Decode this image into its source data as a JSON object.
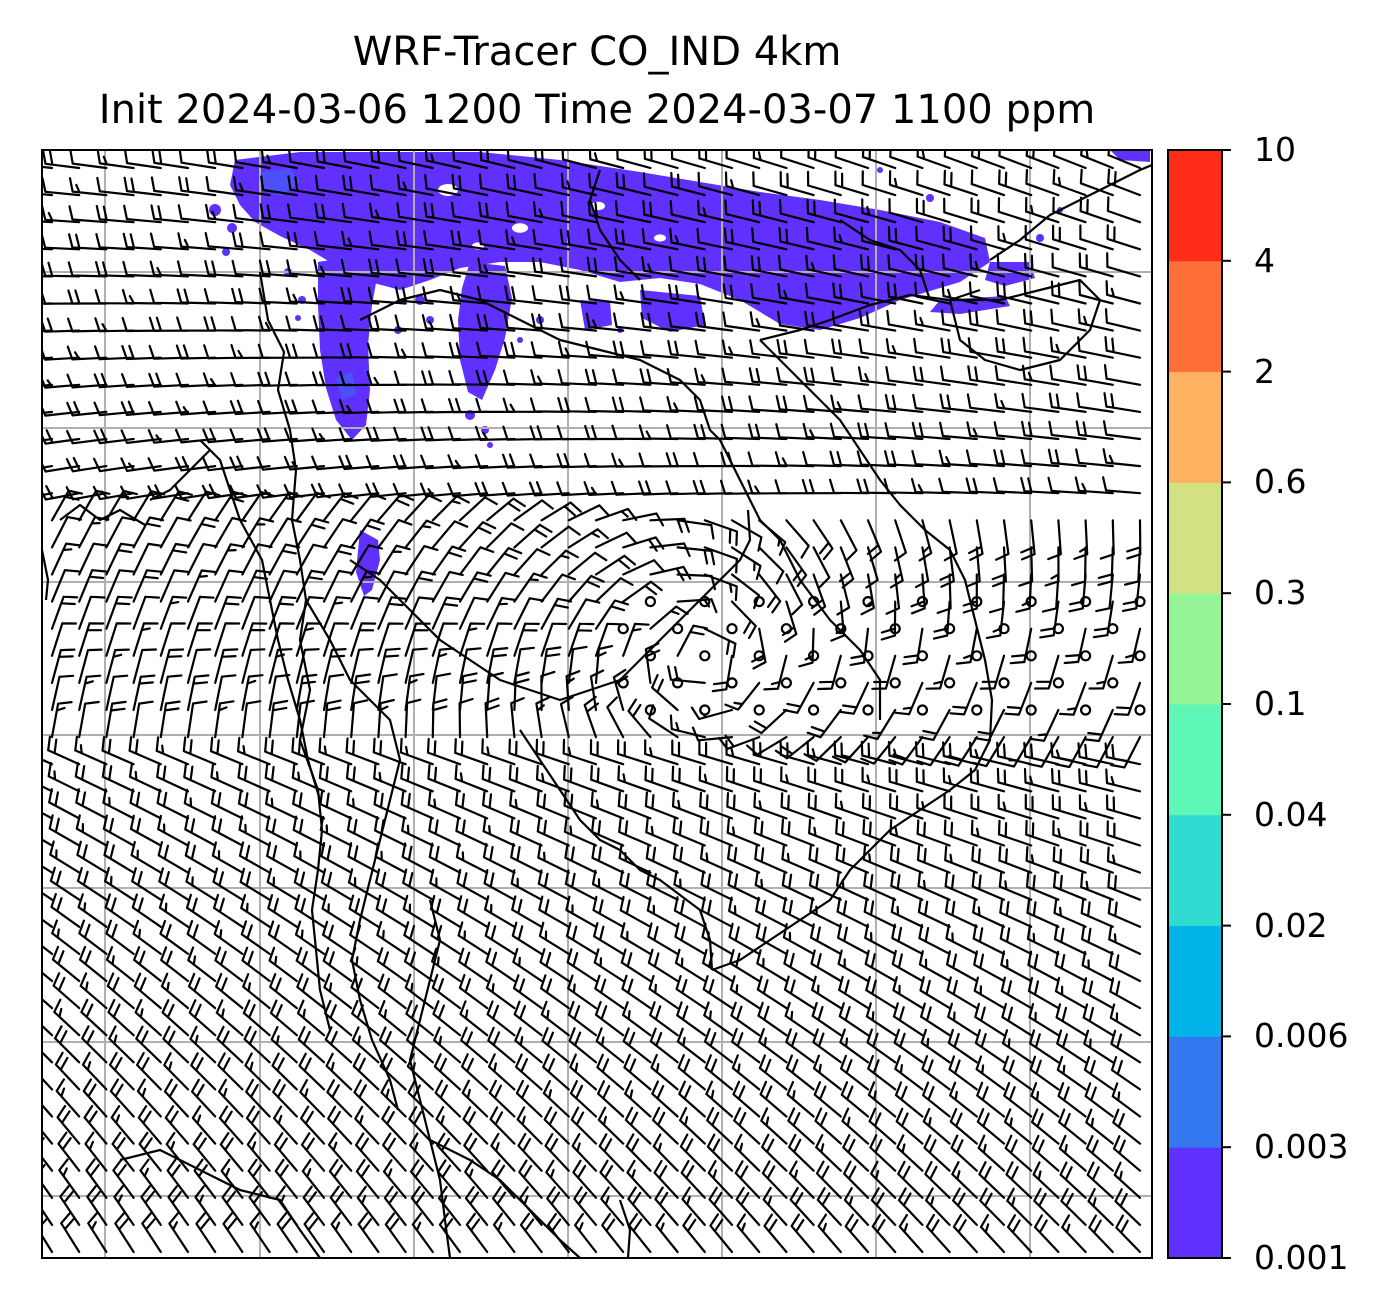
{
  "title": {
    "line1": "WRF-Tracer CO_IND 4km",
    "line2": "Init 2024-03-06 1200 Time 2024-03-07 1100 ppm"
  },
  "colorbar": {
    "levels": [
      "0.001",
      "0.003",
      "0.006",
      "0.02",
      "0.04",
      "0.1",
      "0.3",
      "0.6",
      "2",
      "4",
      "10"
    ],
    "colors": [
      "#6030ff",
      "#3478f0",
      "#00b4ea",
      "#30dcd2",
      "#5ef7b8",
      "#95f496",
      "#d2e283",
      "#fcb261",
      "#ff6f3a",
      "#ff2d18"
    ]
  },
  "map": {
    "plume_color": "#6030ff",
    "gridline_color": "#b0b0b0",
    "barb_color": "#000000"
  }
}
